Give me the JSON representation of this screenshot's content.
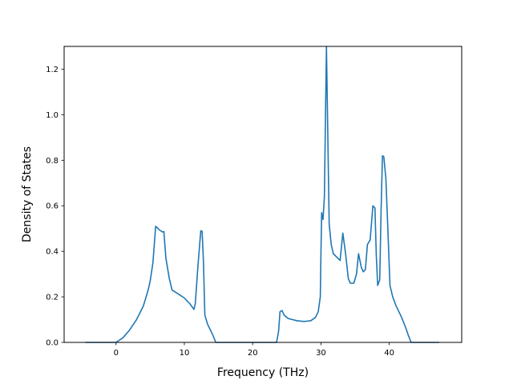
{
  "chart_data": {
    "type": "line",
    "title": "",
    "xlabel": "Frequency (THz)",
    "ylabel": "Density of States",
    "xlim": [
      -7.6,
      50.6
    ],
    "ylim": [
      0.0,
      1.3
    ],
    "grid": false,
    "legend": "none",
    "xticks": [
      0,
      10,
      20,
      30,
      40
    ],
    "xtick_labels": [
      "0",
      "10",
      "20",
      "30",
      "40"
    ],
    "yticks": [
      0.0,
      0.2,
      0.4,
      0.6,
      0.8,
      1.0,
      1.2
    ],
    "ytick_labels": [
      "0.0",
      "0.2",
      "0.4",
      "0.6",
      "0.8",
      "1.0",
      "1.2"
    ],
    "series": [
      {
        "color": "#1f77b4",
        "x": [
          -4.5,
          0.0,
          1.0,
          2.0,
          3.0,
          4.0,
          4.7,
          5.0,
          5.4,
          5.8,
          6.3,
          6.8,
          7.0,
          7.3,
          7.8,
          8.2,
          9.0,
          10.0,
          10.8,
          11.4,
          11.6,
          12.0,
          12.4,
          12.6,
          12.8,
          13.0,
          13.4,
          14.2,
          14.6,
          23.5,
          23.8,
          24.0,
          24.3,
          24.6,
          25.2,
          26.5,
          27.5,
          28.5,
          29.2,
          29.6,
          29.9,
          30.0,
          30.1,
          30.2,
          30.3,
          30.5,
          30.8,
          31.2,
          31.5,
          31.8,
          32.3,
          32.8,
          33.2,
          33.6,
          34.0,
          34.3,
          34.8,
          35.2,
          35.5,
          35.9,
          36.2,
          36.5,
          36.8,
          37.2,
          37.6,
          37.9,
          38.1,
          38.3,
          38.6,
          38.8,
          39.0,
          39.2,
          39.5,
          39.8,
          40.1,
          40.5,
          41.0,
          41.8,
          42.4,
          42.8,
          43.2,
          47.3
        ],
        "y": [
          0.0,
          0.0,
          0.02,
          0.055,
          0.1,
          0.16,
          0.23,
          0.27,
          0.35,
          0.51,
          0.495,
          0.485,
          0.487,
          0.37,
          0.28,
          0.23,
          0.215,
          0.195,
          0.17,
          0.145,
          0.17,
          0.34,
          0.49,
          0.488,
          0.35,
          0.12,
          0.08,
          0.03,
          0.0,
          0.0,
          0.05,
          0.135,
          0.14,
          0.12,
          0.105,
          0.095,
          0.092,
          0.095,
          0.11,
          0.135,
          0.2,
          0.4,
          0.57,
          0.55,
          0.54,
          0.64,
          1.3,
          0.52,
          0.43,
          0.39,
          0.375,
          0.36,
          0.48,
          0.39,
          0.28,
          0.26,
          0.26,
          0.3,
          0.39,
          0.33,
          0.31,
          0.32,
          0.43,
          0.45,
          0.6,
          0.59,
          0.38,
          0.25,
          0.275,
          0.58,
          0.82,
          0.815,
          0.72,
          0.49,
          0.25,
          0.2,
          0.16,
          0.11,
          0.065,
          0.03,
          0.0,
          0.0
        ]
      }
    ]
  }
}
